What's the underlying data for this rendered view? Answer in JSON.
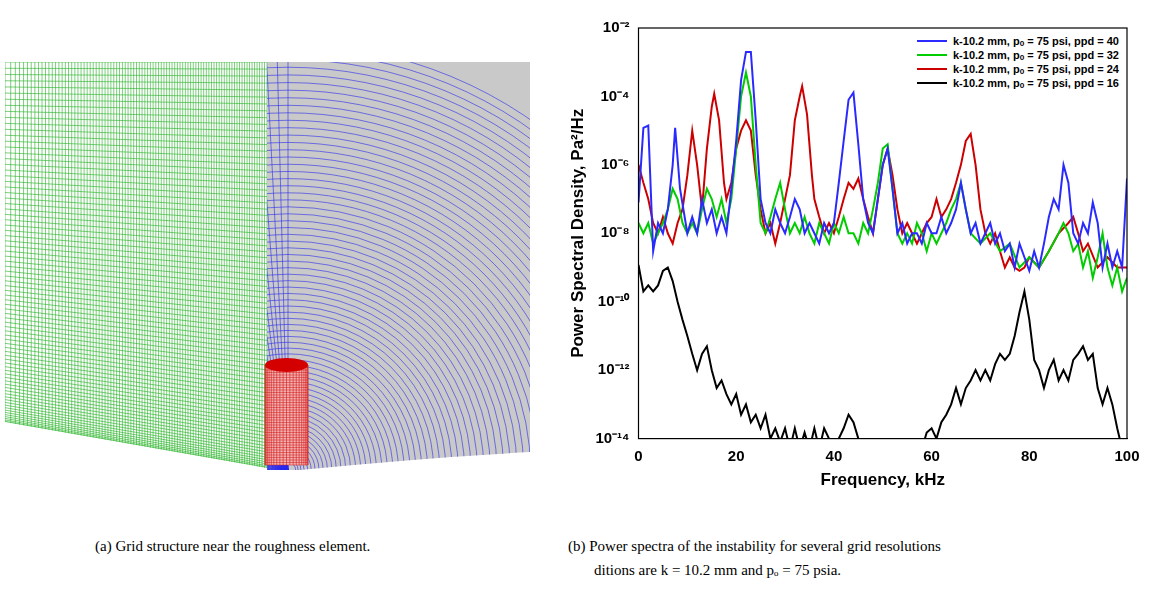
{
  "image_panel": {
    "caption": "(a) Grid structure near the roughness element."
  },
  "chart_data": {
    "type": "line",
    "caption_lines": [
      "(b) Power spectra of the instability for several grid resolutions",
      "ditions are k = 10.2 mm and pₒ = 75 psia."
    ],
    "x_label": "Frequency, kHz",
    "y_label": "Power Spectral Density, Pa²/Hz",
    "log": "y",
    "grid": false,
    "legend": "upper right",
    "xlim": [
      0,
      100
    ],
    "xticks": [
      0,
      20,
      40,
      60,
      80,
      100
    ],
    "ylim": [
      1e-14,
      0.01
    ],
    "yticks": [
      {
        "value": 1e-14,
        "label": "10⁻¹⁴"
      },
      {
        "value": 1e-12,
        "label": "10⁻¹²"
      },
      {
        "value": 1e-10,
        "label": "10⁻¹⁰"
      },
      {
        "value": 1e-08,
        "label": "10⁻⁸"
      },
      {
        "value": 1e-06,
        "label": "10⁻⁶"
      },
      {
        "value": 0.0001,
        "label": "10⁻⁴"
      },
      {
        "value": 0.01,
        "label": "10⁻²"
      }
    ],
    "series": [
      {
        "name": "k-10.2 mm, pₒ = 75 psi, ppd = 40",
        "color": "#2a2aff",
        "x": [
          0,
          1,
          2,
          3,
          4,
          5,
          6,
          7,
          7.5,
          8.5,
          10,
          11,
          12,
          13,
          14,
          15,
          16,
          17,
          18,
          19,
          20,
          21,
          22,
          23,
          24,
          25,
          26,
          27,
          28,
          29,
          30,
          31,
          32,
          33,
          34,
          35,
          36,
          37,
          38,
          39,
          40,
          41,
          42,
          43,
          44,
          45,
          46,
          47,
          48,
          49,
          50,
          51,
          52,
          53,
          54,
          55,
          56,
          57,
          58,
          59,
          60,
          61,
          62,
          63,
          64,
          65,
          66,
          67,
          68,
          69,
          70,
          71,
          72,
          73,
          74,
          75,
          76,
          77,
          78,
          79,
          80,
          81,
          82,
          83,
          84,
          85,
          86,
          87,
          88,
          89,
          90,
          91,
          92,
          93,
          94,
          95,
          96,
          97,
          98,
          99,
          100
        ],
        "values": [
          8e-08,
          1.2e-05,
          1.4e-05,
          3e-09,
          2e-08,
          1e-08,
          5e-08,
          1e-06,
          1.2e-05,
          2e-07,
          1e-08,
          3e-08,
          1e-08,
          1e-07,
          2e-08,
          5e-08,
          1e-08,
          3e-08,
          1e-08,
          2e-07,
          5e-06,
          0.0003,
          0.002,
          0.002,
          2e-05,
          1e-07,
          2e-08,
          1e-08,
          5e-08,
          2e-08,
          1e-08,
          3e-08,
          1e-07,
          5e-08,
          1e-08,
          2e-08,
          1e-08,
          5e-09,
          2e-08,
          1e-08,
          2e-08,
          3e-07,
          5e-06,
          8e-05,
          0.00013,
          4e-06,
          1e-07,
          2e-08,
          1e-08,
          1e-07,
          1e-06,
          3e-06,
          2e-07,
          1e-08,
          2e-08,
          5e-09,
          1e-08,
          1e-08,
          5e-09,
          2e-08,
          1e-08,
          1e-08,
          3e-08,
          1e-08,
          2e-08,
          5e-08,
          3e-07,
          5e-08,
          1e-08,
          2e-08,
          5e-09,
          1e-08,
          2e-08,
          5e-09,
          1e-08,
          3e-09,
          5e-09,
          1e-09,
          5e-09,
          2e-09,
          8e-10,
          3e-09,
          1e-09,
          5e-09,
          3e-08,
          1e-07,
          5e-08,
          1e-06,
          3e-07,
          1e-08,
          5e-09,
          2e-08,
          1e-08,
          8e-08,
          2e-08,
          1e-09,
          5e-09,
          1e-09,
          3e-09,
          1e-09,
          4e-07
        ]
      },
      {
        "name": "k-10.2 mm, pₒ = 75 psi, ppd = 32",
        "color": "#00cc00",
        "x": [
          0,
          1,
          2,
          3,
          4,
          5,
          6,
          7,
          8,
          9,
          10,
          11,
          12,
          13,
          14,
          15,
          16,
          17,
          18,
          19,
          20,
          21,
          22,
          23,
          24,
          25,
          26,
          27,
          28,
          29,
          30,
          31,
          32,
          33,
          34,
          35,
          36,
          37,
          38,
          39,
          40,
          41,
          42,
          43,
          44,
          45,
          46,
          47,
          48,
          49,
          50,
          51,
          52,
          53,
          54,
          55,
          56,
          57,
          58,
          59,
          60,
          61,
          62,
          63,
          64,
          65,
          66,
          67,
          68,
          70,
          72,
          74,
          76,
          78,
          80,
          82,
          84,
          86,
          87,
          88,
          89,
          90,
          91,
          92,
          93,
          94,
          95,
          96,
          97,
          98,
          99,
          100
        ],
        "values": [
          2e-08,
          1e-08,
          2e-08,
          5e-09,
          1e-08,
          2e-08,
          5e-08,
          2e-07,
          1e-07,
          2e-08,
          1e-08,
          2e-08,
          1e-08,
          5e-08,
          2e-07,
          1e-07,
          3e-08,
          1e-07,
          2e-08,
          1e-07,
          3e-06,
          0.0001,
          0.0005,
          0.0001,
          1e-06,
          2e-08,
          1e-08,
          3e-08,
          1e-07,
          3e-07,
          5e-08,
          1e-08,
          2e-08,
          1e-08,
          3e-08,
          1e-08,
          5e-09,
          2e-08,
          1e-08,
          5e-09,
          2e-08,
          1e-08,
          3e-08,
          1e-08,
          1e-08,
          5e-09,
          2e-08,
          1e-08,
          5e-08,
          3e-07,
          3e-06,
          4e-06,
          2e-07,
          1e-08,
          5e-09,
          1e-08,
          5e-09,
          2e-08,
          1e-08,
          3e-09,
          1e-08,
          5e-09,
          1e-08,
          2e-08,
          5e-08,
          1e-07,
          3e-07,
          5e-08,
          1e-08,
          5e-09,
          1e-08,
          3e-09,
          5e-09,
          1e-09,
          2e-09,
          1e-09,
          3e-09,
          1e-08,
          2e-08,
          1e-08,
          3e-09,
          5e-09,
          1e-09,
          3e-09,
          5e-10,
          2e-09,
          1e-08,
          1e-09,
          3e-10,
          1e-09,
          2e-10,
          5e-10
        ]
      },
      {
        "name": "k-10.2 mm, pₒ = 75 psi, ppd = 24",
        "color": "#cc0000",
        "x": [
          0,
          1,
          2,
          3,
          4,
          5,
          6,
          7,
          8,
          9,
          10,
          11,
          12,
          13,
          14,
          15,
          15.5,
          16.5,
          17.5,
          18,
          19,
          20,
          21,
          22,
          23,
          24,
          25,
          26,
          27,
          28,
          29,
          30,
          31,
          32,
          33,
          33.5,
          34.5,
          35.5,
          36,
          37,
          38,
          39,
          40,
          41,
          42,
          43,
          44,
          45,
          46,
          47,
          48,
          49,
          50,
          51,
          52,
          53,
          54,
          55,
          56,
          57,
          58,
          59,
          60,
          61,
          62,
          63,
          64,
          65,
          66,
          67,
          68,
          69,
          70,
          71,
          72,
          73,
          74,
          75,
          76,
          77,
          78,
          79,
          80,
          82,
          84,
          86,
          88,
          89,
          90,
          91,
          92,
          94,
          96,
          98,
          100
        ],
        "values": [
          1e-06,
          3e-07,
          1e-07,
          2e-08,
          1e-08,
          3e-08,
          1e-08,
          5e-09,
          2e-08,
          5e-08,
          5e-07,
          1e-05,
          1e-06,
          5e-08,
          3e-06,
          5e-05,
          0.00012,
          2e-05,
          3e-07,
          1e-07,
          3e-07,
          3e-06,
          1e-05,
          2e-05,
          1e-05,
          5e-07,
          5e-08,
          1e-08,
          2e-08,
          5e-09,
          2e-08,
          1e-07,
          5e-07,
          2e-05,
          0.0001,
          0.0002,
          3e-05,
          5e-07,
          1e-07,
          3e-08,
          1e-08,
          2e-08,
          1e-08,
          3e-08,
          1e-07,
          3e-07,
          2e-07,
          4e-07,
          1e-07,
          3e-08,
          1e-08,
          1e-07,
          1e-06,
          3e-06,
          5e-07,
          5e-08,
          1e-08,
          2e-08,
          1e-08,
          5e-09,
          1e-08,
          2e-08,
          3e-08,
          1e-07,
          3e-08,
          5e-08,
          1e-07,
          3e-07,
          1e-06,
          5e-06,
          8e-06,
          1e-06,
          5e-08,
          1e-08,
          5e-09,
          1e-08,
          3e-09,
          1e-09,
          2e-09,
          1e-09,
          8e-10,
          1e-09,
          2e-09,
          1e-09,
          3e-09,
          1e-08,
          2e-08,
          3e-08,
          1e-08,
          3e-09,
          5e-09,
          1e-09,
          2e-09,
          1e-09,
          1e-09
        ]
      },
      {
        "name": "k-10.2 mm, pₒ = 75 psi, ppd = 16",
        "color": "#000000",
        "x": [
          0,
          1,
          2,
          3,
          4,
          5,
          6,
          7,
          8,
          9,
          10,
          11,
          12,
          13,
          14,
          15,
          16,
          17,
          18,
          19,
          20,
          21,
          22,
          23,
          24,
          25,
          26,
          27,
          28,
          29,
          30,
          31,
          32,
          33,
          34,
          35,
          36,
          37,
          38,
          39,
          40,
          42,
          43,
          44,
          45,
          46,
          50,
          55,
          58,
          59,
          60,
          61,
          62,
          63,
          64,
          65,
          66,
          67,
          68,
          69,
          70,
          71,
          72,
          73,
          74,
          75,
          76,
          77,
          78,
          79,
          80,
          81,
          82,
          83,
          84,
          85,
          86,
          87,
          88,
          89,
          90,
          91,
          92,
          93,
          94,
          95,
          96,
          97,
          98,
          99,
          100
        ],
        "values": [
          1.2e-09,
          2e-10,
          3e-10,
          2e-10,
          3e-10,
          8e-10,
          1e-09,
          4e-10,
          1e-10,
          3e-11,
          1e-11,
          3e-12,
          1e-12,
          3e-12,
          5e-12,
          1e-12,
          3e-13,
          5e-13,
          2e-13,
          1e-13,
          2e-13,
          5e-14,
          1e-13,
          3e-14,
          5e-14,
          2e-14,
          5e-14,
          1e-14,
          2e-14,
          8e-15,
          2e-14,
          5e-15,
          2e-14,
          5e-15,
          1.5e-14,
          5e-15,
          2e-14,
          5e-15,
          2e-14,
          1e-14,
          5e-15,
          2e-14,
          5e-14,
          3e-14,
          1e-14,
          5e-15,
          3e-15,
          3e-15,
          5e-15,
          1.5e-14,
          2e-14,
          1e-14,
          3e-14,
          5e-14,
          1e-13,
          3e-13,
          1e-13,
          3e-13,
          5e-13,
          1e-12,
          5e-13,
          1e-12,
          5e-13,
          1.5e-12,
          3e-12,
          2e-12,
          3e-12,
          1e-11,
          5e-11,
          2e-10,
          3e-11,
          2e-12,
          1e-12,
          3e-13,
          1e-12,
          2e-12,
          5e-13,
          1e-12,
          5e-13,
          2e-12,
          3e-12,
          5e-12,
          2e-12,
          3e-12,
          3e-13,
          1e-13,
          3e-13,
          1e-13,
          2e-14,
          5e-15,
          1e-14
        ]
      }
    ]
  }
}
